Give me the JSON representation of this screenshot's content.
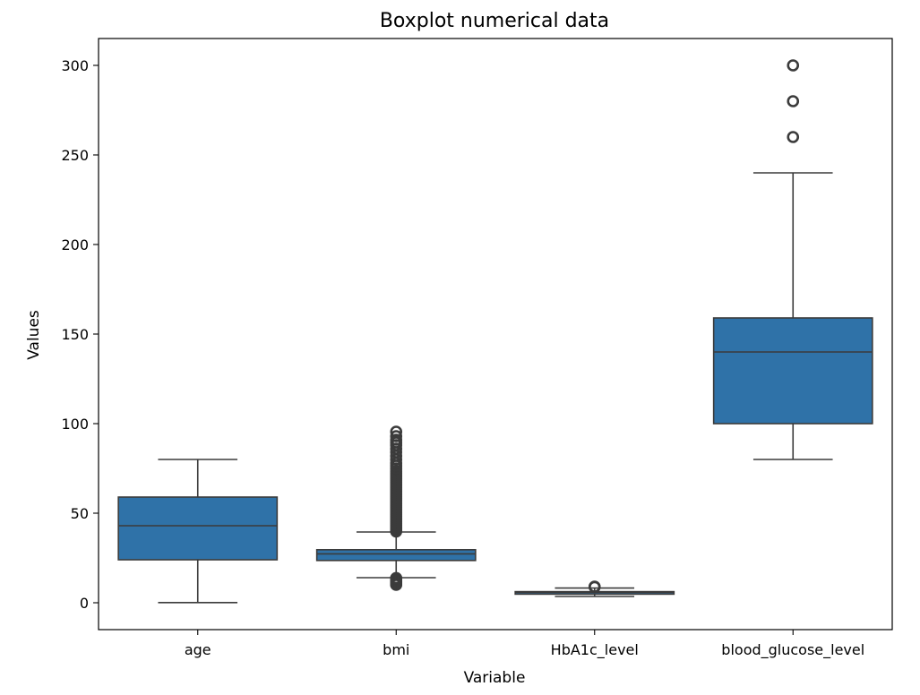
{
  "chart_data": {
    "type": "box",
    "title": "Boxplot numerical data",
    "xlabel": "Variable",
    "ylabel": "Values",
    "ylim": [
      -15,
      315
    ],
    "yticks": [
      0,
      50,
      100,
      150,
      200,
      250,
      300
    ],
    "categories": [
      "age",
      "bmi",
      "HbA1c_level",
      "blood_glucose_level"
    ],
    "box_color": "#2f72a8",
    "line_color": "#3b3b3b",
    "boxes": [
      {
        "name": "age",
        "whisker_low": 0.08,
        "q1": 24,
        "median": 43,
        "q3": 59,
        "whisker_high": 80,
        "outliers": []
      },
      {
        "name": "bmi",
        "whisker_low": 14,
        "q1": 23.6,
        "median": 27.3,
        "q3": 29.6,
        "whisker_high": 39.5,
        "outliers": [
          10,
          10.5,
          11,
          11.5,
          12,
          12.5,
          13,
          13.5,
          13.8,
          39.8,
          40.5,
          41.5,
          42.5,
          43.5,
          44.5,
          45.5,
          46.5,
          47.5,
          48.5,
          49.5,
          50.5,
          51.5,
          52.5,
          53.5,
          54.5,
          55.5,
          56.5,
          57.5,
          58.5,
          59.5,
          60.5,
          61.5,
          62.5,
          63.5,
          64.5,
          65.5,
          66.5,
          67.5,
          68.5,
          69.5,
          70.5,
          71.5,
          72.5,
          73.5,
          75,
          76.5,
          78,
          80,
          82,
          84,
          86,
          88,
          89.5,
          91,
          93,
          95.5
        ]
      },
      {
        "name": "HbA1c_level",
        "whisker_low": 3.5,
        "q1": 4.8,
        "median": 5.8,
        "q3": 6.2,
        "whisker_high": 8.2,
        "outliers": [
          8.8,
          9.0
        ]
      },
      {
        "name": "blood_glucose_level",
        "whisker_low": 80,
        "q1": 100,
        "median": 140,
        "q3": 159,
        "whisker_high": 240,
        "outliers": [
          260,
          280,
          300
        ]
      }
    ]
  }
}
